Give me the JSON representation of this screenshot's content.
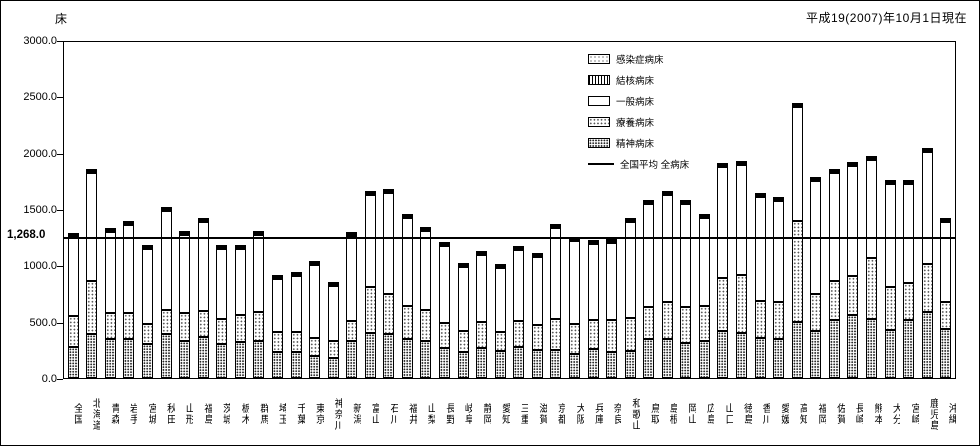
{
  "header": {
    "unit_label": "床",
    "date_note": "平成19(2007)年10月1日現在"
  },
  "chart_data": {
    "type": "bar",
    "stacked": true,
    "title": "",
    "ylabel": "床",
    "ylim": [
      0,
      3000
    ],
    "yticks": [
      0,
      500,
      1000,
      1500,
      2000,
      2500,
      3000
    ],
    "ytick_labels": [
      "0.0",
      "500.0",
      "1000.0",
      "1500.0",
      "2000.0",
      "2500.0",
      "3000.0"
    ],
    "average_line": {
      "label": "全国平均 全病床",
      "value": 1268.0,
      "axis_label": "1,268.0"
    },
    "legend": [
      {
        "label": "感染症病床",
        "pattern": "light-dots",
        "type": "box"
      },
      {
        "label": "結核病床",
        "pattern": "vlines",
        "type": "box"
      },
      {
        "label": "一般病床",
        "pattern": "white",
        "type": "box"
      },
      {
        "label": "療養病床",
        "pattern": "dots",
        "type": "box"
      },
      {
        "label": "精神病床",
        "pattern": "dense-dots",
        "type": "box"
      },
      {
        "label": "全国平均 全病床",
        "pattern": "line",
        "type": "line"
      }
    ],
    "categories": [
      "全国",
      "北海道",
      "青森",
      "岩手",
      "宮城",
      "秋田",
      "山形",
      "福島",
      "茨城",
      "栃木",
      "群馬",
      "埼玉",
      "千葉",
      "東京",
      "神奈川",
      "新潟",
      "富山",
      "石川",
      "福井",
      "山梨",
      "長野",
      "岐阜",
      "静岡",
      "愛知",
      "三重",
      "滋賀",
      "京都",
      "大阪",
      "兵庫",
      "奈良",
      "和歌山",
      "鳥取",
      "島根",
      "岡山",
      "広島",
      "山口",
      "徳島",
      "香川",
      "愛媛",
      "高知",
      "福岡",
      "佐賀",
      "長崎",
      "熊本",
      "大分",
      "宮崎",
      "鹿児島",
      "沖縄"
    ],
    "series": [
      {
        "name": "精神病床",
        "key": "psychiatric",
        "pattern": "dense-dots",
        "values": [
          278,
          390,
          350,
          350,
          300,
          390,
          330,
          370,
          300,
          320,
          330,
          230,
          230,
          200,
          180,
          330,
          400,
          390,
          350,
          330,
          270,
          230,
          270,
          240,
          280,
          250,
          250,
          210,
          260,
          230,
          240,
          350,
          350,
          310,
          330,
          420,
          400,
          360,
          350,
          500,
          420,
          520,
          560,
          530,
          430,
          520,
          590,
          440
        ]
      },
      {
        "name": "療養病床",
        "key": "care",
        "pattern": "dots",
        "values": [
          272,
          480,
          230,
          230,
          180,
          220,
          250,
          230,
          230,
          240,
          260,
          180,
          180,
          160,
          150,
          180,
          410,
          360,
          290,
          280,
          220,
          190,
          230,
          170,
          230,
          220,
          280,
          270,
          260,
          290,
          300,
          280,
          330,
          320,
          310,
          470,
          520,
          330,
          330,
          900,
          330,
          350,
          350,
          540,
          380,
          330,
          430,
          240
        ]
      },
      {
        "name": "一般病床",
        "key": "general",
        "pattern": "white",
        "values": [
          709,
          960,
          720,
          790,
          670,
          880,
          700,
          790,
          620,
          590,
          690,
          470,
          500,
          650,
          490,
          760,
          820,
          900,
          790,
          700,
          690,
          570,
          600,
          570,
          630,
          610,
          810,
          740,
          680,
          690,
          850,
          920,
          950,
          920,
          790,
          990,
          980,
          930,
          900,
          1020,
          1010,
          960,
          980,
          880,
          920,
          880,
          1000,
          710
        ]
      },
      {
        "name": "結核病床",
        "key": "tuberculosis",
        "pattern": "vlines",
        "values": [
          7.6,
          12,
          8,
          8,
          7,
          9,
          8,
          9,
          6,
          7,
          8,
          4,
          5,
          6,
          5,
          8,
          9,
          9,
          9,
          8,
          7,
          6,
          6,
          6,
          7,
          6,
          9,
          8,
          7,
          7,
          9,
          10,
          10,
          9,
          8,
          10,
          10,
          9,
          9,
          15,
          10,
          10,
          11,
          10,
          10,
          9,
          12,
          8
        ]
      },
      {
        "name": "感染症病床",
        "key": "infectious",
        "pattern": "light-dots",
        "values": [
          1.4,
          2,
          2,
          2,
          2,
          2,
          2,
          2,
          1,
          1,
          2,
          1,
          1,
          1,
          1,
          2,
          2,
          2,
          2,
          2,
          2,
          1,
          1,
          1,
          1,
          1,
          2,
          2,
          2,
          1,
          2,
          3,
          3,
          2,
          2,
          2,
          2,
          2,
          2,
          3,
          2,
          2,
          3,
          2,
          2,
          2,
          3,
          3
        ]
      }
    ]
  }
}
